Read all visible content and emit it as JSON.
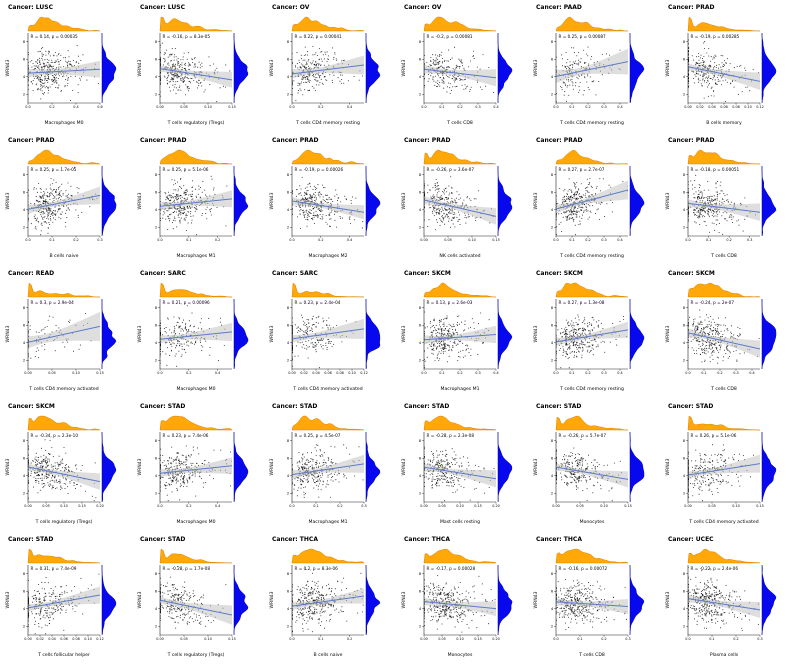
{
  "chart_data": {
    "type": "scatter",
    "description": "Grid of 30 correlation scatter plots (gene expression vs immune cell fraction) with orange top marginal density and blue right marginal density, blue regression line with grey confidence band.",
    "layout": {
      "rows": 5,
      "cols": 6,
      "legend": "none",
      "grid": false
    },
    "ylabel": "WRN43",
    "y_ticks": [
      2,
      4,
      6,
      8
    ],
    "colors": {
      "marginal_x_density": "#FFA500",
      "marginal_x_stroke": "#D98200",
      "marginal_y_density": "#0000EE",
      "marginal_y_stroke": "#0000A8",
      "regression_line": "#5B7BC7",
      "confidence_band": "#BDBDBD",
      "points": "#000000",
      "axis": "#222222"
    },
    "panels": [
      {
        "cancer": "Cancer: LUSC",
        "xlab": "Macrophages M0",
        "ann": "R = 0.14, p = 0.00035",
        "r": 0.14,
        "n": 350,
        "xmax": 0.6,
        "zero": 0.06
      },
      {
        "cancer": "Cancer: LUSC",
        "xlab": "T cells regulatory (Tregs)",
        "ann": "R = -0.16, p = 8.3e-05",
        "r": -0.16,
        "n": 350,
        "xmax": 0.15,
        "zero": 0.22
      },
      {
        "cancer": "Cancer: OV",
        "xlab": "T cells CD4 memory resting",
        "ann": "R = 0.22, p = 0.00041",
        "r": 0.22,
        "n": 260,
        "xmax": 0.5,
        "zero": 0.08
      },
      {
        "cancer": "Cancer: OV",
        "xlab": "T cells CD8",
        "ann": "R = -0.2, p = 0.00081",
        "r": -0.2,
        "n": 260,
        "xmax": 0.4,
        "zero": 0.12
      },
      {
        "cancer": "Cancer: PAAD",
        "xlab": "T cells CD4 memory resting",
        "ann": "R = 0.25, p = 0.00087",
        "r": 0.25,
        "n": 170,
        "xmax": 0.45,
        "zero": 0.05
      },
      {
        "cancer": "Cancer: PRAD",
        "xlab": "B cells memory",
        "ann": "R = -0.19, p = 0.00285",
        "r": -0.19,
        "n": 330,
        "xmax": 0.12,
        "zero": 0.3
      },
      {
        "cancer": "Cancer: PRAD",
        "xlab": "B cells naive",
        "ann": "R = 0.25, p = 1.7e-05",
        "r": 0.25,
        "n": 330,
        "xmax": 0.3,
        "zero": 0.06
      },
      {
        "cancer": "Cancer: PRAD",
        "xlab": "Macrophages M1",
        "ann": "R = 0.25, p = 5.1e-06",
        "r": 0.25,
        "n": 330,
        "xmax": 0.25,
        "zero": 0.05
      },
      {
        "cancer": "Cancer: PRAD",
        "xlab": "Macrophages M2",
        "ann": "R = -0.19, p = 0.00026",
        "r": -0.19,
        "n": 330,
        "xmax": 0.5,
        "zero": 0.03
      },
      {
        "cancer": "Cancer: PRAD",
        "xlab": "NK cells activated",
        "ann": "R = -0.26, p = 3.6e-07",
        "r": -0.26,
        "n": 330,
        "xmax": 0.15,
        "zero": 0.18
      },
      {
        "cancer": "Cancer: PRAD",
        "xlab": "T cells CD4 memory resting",
        "ann": "R = 0.27, p = 2.7e-07",
        "r": 0.27,
        "n": 330,
        "xmax": 0.45,
        "zero": 0.04
      },
      {
        "cancer": "Cancer: PRAD",
        "xlab": "T cells CD8",
        "ann": "R = -0.18, p = 0.00051",
        "r": -0.18,
        "n": 330,
        "xmax": 0.35,
        "zero": 0.1
      },
      {
        "cancer": "Cancer: READ",
        "xlab": "T cells CD4 memory activated",
        "ann": "R = 0.3, p = 2.9e-04",
        "r": 0.3,
        "n": 95,
        "xmax": 0.15,
        "zero": 0.3
      },
      {
        "cancer": "Cancer: SARC",
        "xlab": "Macrophages M0",
        "ann": "R = 0.21, p = 0.00096",
        "r": 0.21,
        "n": 250,
        "xmax": 0.5,
        "zero": 0.25
      },
      {
        "cancer": "Cancer: SARC",
        "xlab": "T cells CD4 memory activated",
        "ann": "R = 0.23, p = 2.4e-04",
        "r": 0.23,
        "n": 250,
        "xmax": 0.12,
        "zero": 0.35
      },
      {
        "cancer": "Cancer: SKCM",
        "xlab": "Macrophages M1",
        "ann": "R = 0.13, p = 2.6e-03",
        "r": 0.13,
        "n": 340,
        "xmax": 0.4,
        "zero": 0.05
      },
      {
        "cancer": "Cancer: SKCM",
        "xlab": "T cells CD4 memory resting",
        "ann": "R = 0.27, p = 1.3e-08",
        "r": 0.27,
        "n": 340,
        "xmax": 0.45,
        "zero": 0.06
      },
      {
        "cancer": "Cancer: SKCM",
        "xlab": "T cells CD8",
        "ann": "R = -0.24, p = 2e-07",
        "r": -0.24,
        "n": 340,
        "xmax": 0.45,
        "zero": 0.08
      },
      {
        "cancer": "Cancer: SKCM",
        "xlab": "T cells regulatory (Tregs)",
        "ann": "R = -0.34, p = 2.3e-10",
        "r": -0.34,
        "n": 340,
        "xmax": 0.2,
        "zero": 0.15
      },
      {
        "cancer": "Cancer: STAD",
        "xlab": "Macrophages M0",
        "ann": "R = 0.23, p = 7.4e-06",
        "r": 0.23,
        "n": 300,
        "xmax": 0.5,
        "zero": 0.1
      },
      {
        "cancer": "Cancer: STAD",
        "xlab": "Macrophages M1",
        "ann": "R = 0.25, p = 4.5e-07",
        "r": 0.25,
        "n": 300,
        "xmax": 0.3,
        "zero": 0.04
      },
      {
        "cancer": "Cancer: STAD",
        "xlab": "Mast cells resting",
        "ann": "R = -0.28, p = 2.3e-08",
        "r": -0.28,
        "n": 300,
        "xmax": 0.2,
        "zero": 0.12
      },
      {
        "cancer": "Cancer: STAD",
        "xlab": "Monocytes",
        "ann": "R = -0.26, p = 5.7e-07",
        "r": -0.26,
        "n": 300,
        "xmax": 0.15,
        "zero": 0.2
      },
      {
        "cancer": "Cancer: STAD",
        "xlab": "T cells CD4 memory activated",
        "ann": "R = 0.26, p = 5.1e-06",
        "r": 0.26,
        "n": 300,
        "xmax": 0.15,
        "zero": 0.3
      },
      {
        "cancer": "Cancer: STAD",
        "xlab": "T cells follicular helper",
        "ann": "R = 0.31, p = 7.4e-09",
        "r": 0.31,
        "n": 300,
        "xmax": 0.12,
        "zero": 0.25
      },
      {
        "cancer": "Cancer: STAD",
        "xlab": "T cells regulatory (Tregs)",
        "ann": "R = -0.28, p = 1.7e-08",
        "r": -0.28,
        "n": 300,
        "xmax": 0.15,
        "zero": 0.2
      },
      {
        "cancer": "Cancer: THCA",
        "xlab": "B cells naive",
        "ann": "R = 0.2, p = 8.3e-06",
        "r": 0.2,
        "n": 380,
        "xmax": 0.25,
        "zero": 0.1
      },
      {
        "cancer": "Cancer: THCA",
        "xlab": "Monocytes",
        "ann": "R = -0.17, p = 0.00028",
        "r": -0.17,
        "n": 380,
        "xmax": 0.2,
        "zero": 0.12
      },
      {
        "cancer": "Cancer: THCA",
        "xlab": "T cells CD8",
        "ann": "R = -0.16, p = 0.00072",
        "r": -0.16,
        "n": 380,
        "xmax": 0.3,
        "zero": 0.1
      },
      {
        "cancer": "Cancer: UCEC",
        "xlab": "Plasma cells",
        "ann": "R = -0.22, p = 2.4e-06",
        "r": -0.22,
        "n": 400,
        "xmax": 0.3,
        "zero": 0.15
      }
    ]
  }
}
